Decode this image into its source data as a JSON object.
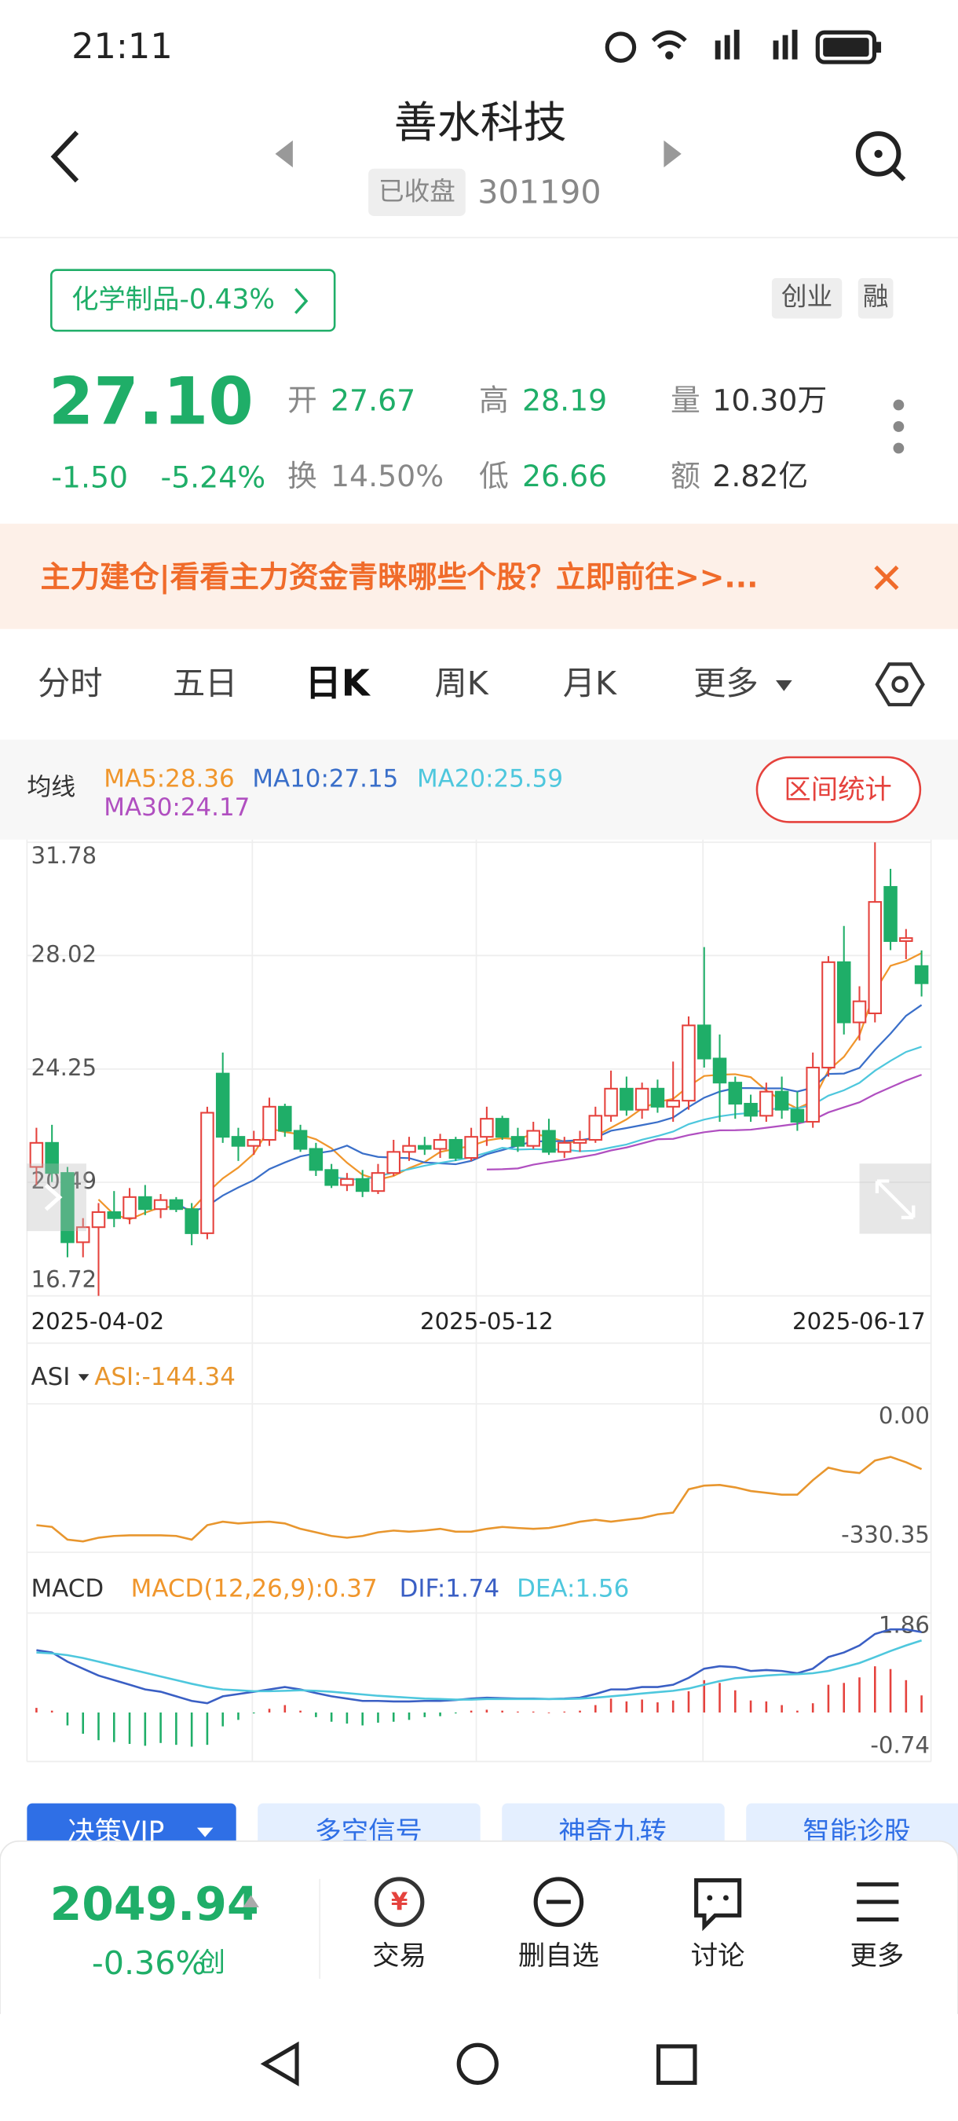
{
  "status_bar": {
    "time": "21:11"
  },
  "header": {
    "title": "善水科技",
    "status": "已收盘",
    "code": "301190"
  },
  "sector": {
    "label": "化学制品-0.43%",
    "tags": [
      "创业",
      "融"
    ]
  },
  "quote": {
    "price": "27.10",
    "change": "-1.50",
    "change_pct": "-5.24%",
    "fields": [
      {
        "label": "开",
        "value": "27.67"
      },
      {
        "label": "高",
        "value": "28.19"
      },
      {
        "label": "量",
        "value": "10.30万"
      },
      {
        "label": "换",
        "value": "14.50%"
      },
      {
        "label": "低",
        "value": "26.66"
      },
      {
        "label": "额",
        "value": "2.82亿"
      }
    ]
  },
  "banner": {
    "text": "主力建仓|看看主力资金青睐哪些个股？立即前往>>..."
  },
  "tabs": [
    "分时",
    "五日",
    "日K",
    "周K",
    "月K",
    "更多"
  ],
  "ma_panel": {
    "title": "均线",
    "button": "区间统计",
    "legend": [
      {
        "label": "MA5:28.36",
        "color": "#f0962c"
      },
      {
        "label": "MA10:27.15",
        "color": "#3a6fc9"
      },
      {
        "label": "MA20:25.59",
        "color": "#4ec7dd"
      },
      {
        "label": "MA30:24.17",
        "color": "#b04fc0"
      }
    ]
  },
  "chart_data": [
    {
      "type": "candlestick",
      "ylim": [
        16.72,
        31.78
      ],
      "yticks": [
        31.78,
        28.02,
        24.25,
        20.49,
        16.72
      ],
      "up_color": "#e5423d",
      "down_color": "#1fae68",
      "categories": [
        "2025-04-02",
        null,
        null,
        null,
        null,
        null,
        null,
        null,
        null,
        null,
        null,
        null,
        null,
        null,
        null,
        null,
        null,
        null,
        null,
        null,
        null,
        null,
        null,
        null,
        null,
        null,
        null,
        null,
        null,
        "2025-05-12",
        null,
        null,
        null,
        null,
        null,
        null,
        null,
        null,
        null,
        null,
        null,
        null,
        null,
        null,
        null,
        null,
        null,
        null,
        null,
        null,
        null,
        null,
        null,
        null,
        null,
        null,
        null,
        "2025-06-17"
      ],
      "open": [
        21.0,
        21.8,
        20.8,
        18.5,
        19.0,
        19.5,
        19.3,
        20.0,
        19.6,
        19.9,
        19.6,
        18.8,
        24.1,
        22.0,
        21.7,
        21.9,
        23.0,
        22.2,
        21.6,
        20.9,
        20.4,
        20.6,
        20.2,
        20.8,
        21.5,
        21.7,
        21.6,
        21.9,
        21.3,
        22.0,
        22.6,
        22.0,
        21.7,
        22.2,
        21.5,
        21.8,
        21.9,
        22.7,
        23.6,
        22.9,
        23.6,
        23.0,
        23.2,
        25.7,
        24.6,
        23.8,
        23.1,
        22.7,
        23.5,
        22.9,
        22.5,
        24.3,
        27.8,
        25.8,
        26.1,
        30.3,
        28.5,
        27.67
      ],
      "high": [
        22.3,
        22.4,
        21.0,
        19.3,
        19.8,
        20.2,
        20.3,
        20.4,
        20.1,
        20.0,
        19.8,
        23.0,
        24.8,
        22.3,
        22.2,
        23.3,
        23.1,
        22.4,
        21.8,
        21.1,
        20.8,
        20.9,
        21.1,
        21.9,
        22.0,
        22.0,
        22.1,
        22.0,
        22.3,
        23.0,
        22.7,
        22.3,
        22.5,
        22.6,
        22.0,
        22.2,
        23.0,
        24.2,
        24.0,
        23.8,
        23.9,
        24.5,
        26.0,
        28.3,
        25.4,
        24.0,
        23.4,
        23.8,
        24.0,
        23.5,
        24.8,
        28.0,
        29.0,
        27.0,
        31.78,
        30.9,
        28.9,
        28.19
      ],
      "low": [
        20.4,
        20.5,
        18.0,
        18.0,
        16.72,
        19.0,
        19.1,
        19.4,
        19.3,
        19.5,
        18.4,
        18.6,
        21.8,
        21.2,
        21.4,
        21.7,
        22.0,
        21.5,
        20.7,
        20.3,
        20.2,
        20.0,
        20.1,
        20.7,
        21.2,
        21.4,
        21.3,
        21.2,
        21.2,
        21.7,
        21.9,
        21.5,
        21.6,
        21.4,
        21.3,
        21.5,
        21.8,
        22.5,
        22.7,
        22.6,
        22.8,
        22.5,
        22.9,
        24.3,
        22.5,
        22.6,
        22.5,
        22.5,
        22.6,
        22.2,
        22.3,
        24.0,
        25.4,
        25.2,
        25.8,
        28.2,
        27.9,
        26.66
      ],
      "close": [
        21.8,
        20.8,
        18.5,
        19.0,
        19.5,
        19.3,
        20.0,
        19.6,
        19.9,
        19.6,
        18.8,
        22.8,
        22.0,
        21.7,
        21.9,
        23.0,
        22.2,
        21.6,
        20.9,
        20.4,
        20.6,
        20.2,
        20.8,
        21.5,
        21.7,
        21.6,
        21.9,
        21.3,
        22.0,
        22.6,
        22.0,
        21.7,
        22.2,
        21.5,
        21.8,
        21.9,
        22.7,
        23.6,
        22.9,
        23.6,
        23.0,
        23.2,
        25.7,
        24.6,
        23.8,
        23.1,
        22.7,
        23.5,
        22.9,
        22.5,
        24.3,
        27.8,
        25.8,
        26.5,
        29.8,
        28.5,
        28.6,
        27.1
      ]
    },
    {
      "type": "line",
      "title": "ASI",
      "legend": "ASI:-144.34",
      "ylim": [
        -330.35,
        0
      ],
      "yticks": [
        {
          "value": 0,
          "label": "0.00"
        },
        -330.35
      ],
      "series": [
        {
          "name": "ASI",
          "color": "#e8962e",
          "values": [
            -300,
            -305,
            -340,
            -345,
            -335,
            -330,
            -328,
            -328,
            -328,
            -330,
            -340,
            -300,
            -290,
            -295,
            -292,
            -290,
            -295,
            -310,
            -320,
            -330,
            -335,
            -330,
            -320,
            -315,
            -318,
            -315,
            -310,
            -318,
            -318,
            -310,
            -305,
            -308,
            -310,
            -308,
            -300,
            -290,
            -285,
            -290,
            -285,
            -280,
            -270,
            -265,
            -200,
            -190,
            -188,
            -195,
            -205,
            -210,
            -215,
            -215,
            -175,
            -140,
            -150,
            -155,
            -120,
            -110,
            -125,
            -144.34
          ]
        }
      ]
    },
    {
      "type": "macd",
      "title": "MACD",
      "ylim": [
        -0.74,
        1.86
      ],
      "yticks": [
        1.86,
        -0.74
      ],
      "series": [
        {
          "name": "MACD(12,26,9):0.37",
          "color": "#f0962c",
          "values": [
            0.1,
            0.04,
            -0.28,
            -0.46,
            -0.6,
            -0.64,
            -0.68,
            -0.72,
            -0.66,
            -0.7,
            -0.74,
            -0.7,
            -0.3,
            -0.16,
            -0.02,
            0.08,
            0.16,
            0.04,
            -0.1,
            -0.2,
            -0.24,
            -0.28,
            -0.22,
            -0.2,
            -0.16,
            -0.1,
            -0.08,
            -0.02,
            0.04,
            0.06,
            0.04,
            0.02,
            0.02,
            0,
            0.02,
            0.04,
            0.16,
            0.3,
            0.24,
            0.28,
            0.22,
            0.26,
            0.46,
            0.7,
            0.64,
            0.48,
            0.26,
            0.24,
            0.16,
            0.04,
            0.2,
            0.6,
            0.64,
            0.76,
            1.0,
            0.94,
            0.7,
            0.37
          ]
        },
        {
          "name": "DIF:1.74",
          "color": "#3a5fc4",
          "values": [
            1.35,
            1.3,
            1.1,
            0.95,
            0.8,
            0.7,
            0.6,
            0.5,
            0.45,
            0.35,
            0.25,
            0.2,
            0.35,
            0.4,
            0.45,
            0.5,
            0.55,
            0.5,
            0.42,
            0.35,
            0.3,
            0.25,
            0.25,
            0.24,
            0.24,
            0.25,
            0.25,
            0.27,
            0.3,
            0.32,
            0.31,
            0.3,
            0.3,
            0.29,
            0.3,
            0.32,
            0.4,
            0.5,
            0.5,
            0.55,
            0.55,
            0.6,
            0.75,
            0.95,
            1.0,
            0.98,
            0.9,
            0.92,
            0.9,
            0.85,
            0.95,
            1.2,
            1.3,
            1.45,
            1.7,
            1.8,
            1.8,
            1.74
          ]
        },
        {
          "name": "DEA:1.56",
          "color": "#4ec7dd",
          "values": [
            1.3,
            1.28,
            1.24,
            1.18,
            1.1,
            1.02,
            0.94,
            0.86,
            0.78,
            0.7,
            0.62,
            0.55,
            0.5,
            0.48,
            0.46,
            0.46,
            0.47,
            0.48,
            0.47,
            0.45,
            0.42,
            0.39,
            0.36,
            0.34,
            0.32,
            0.3,
            0.29,
            0.28,
            0.28,
            0.29,
            0.29,
            0.29,
            0.29,
            0.29,
            0.29,
            0.3,
            0.32,
            0.35,
            0.38,
            0.41,
            0.44,
            0.47,
            0.52,
            0.6,
            0.68,
            0.74,
            0.77,
            0.8,
            0.82,
            0.83,
            0.85,
            0.9,
            0.98,
            1.07,
            1.2,
            1.33,
            1.45,
            1.56
          ]
        }
      ]
    }
  ],
  "feature_buttons": [
    "决策VIP",
    "多空信号",
    "神奇九转",
    "智能诊股"
  ],
  "footer": {
    "index_value": "2049.94",
    "index_change": "-0.36%",
    "board": "创",
    "actions": [
      "交易",
      "删自选",
      "讨论",
      "更多"
    ]
  }
}
